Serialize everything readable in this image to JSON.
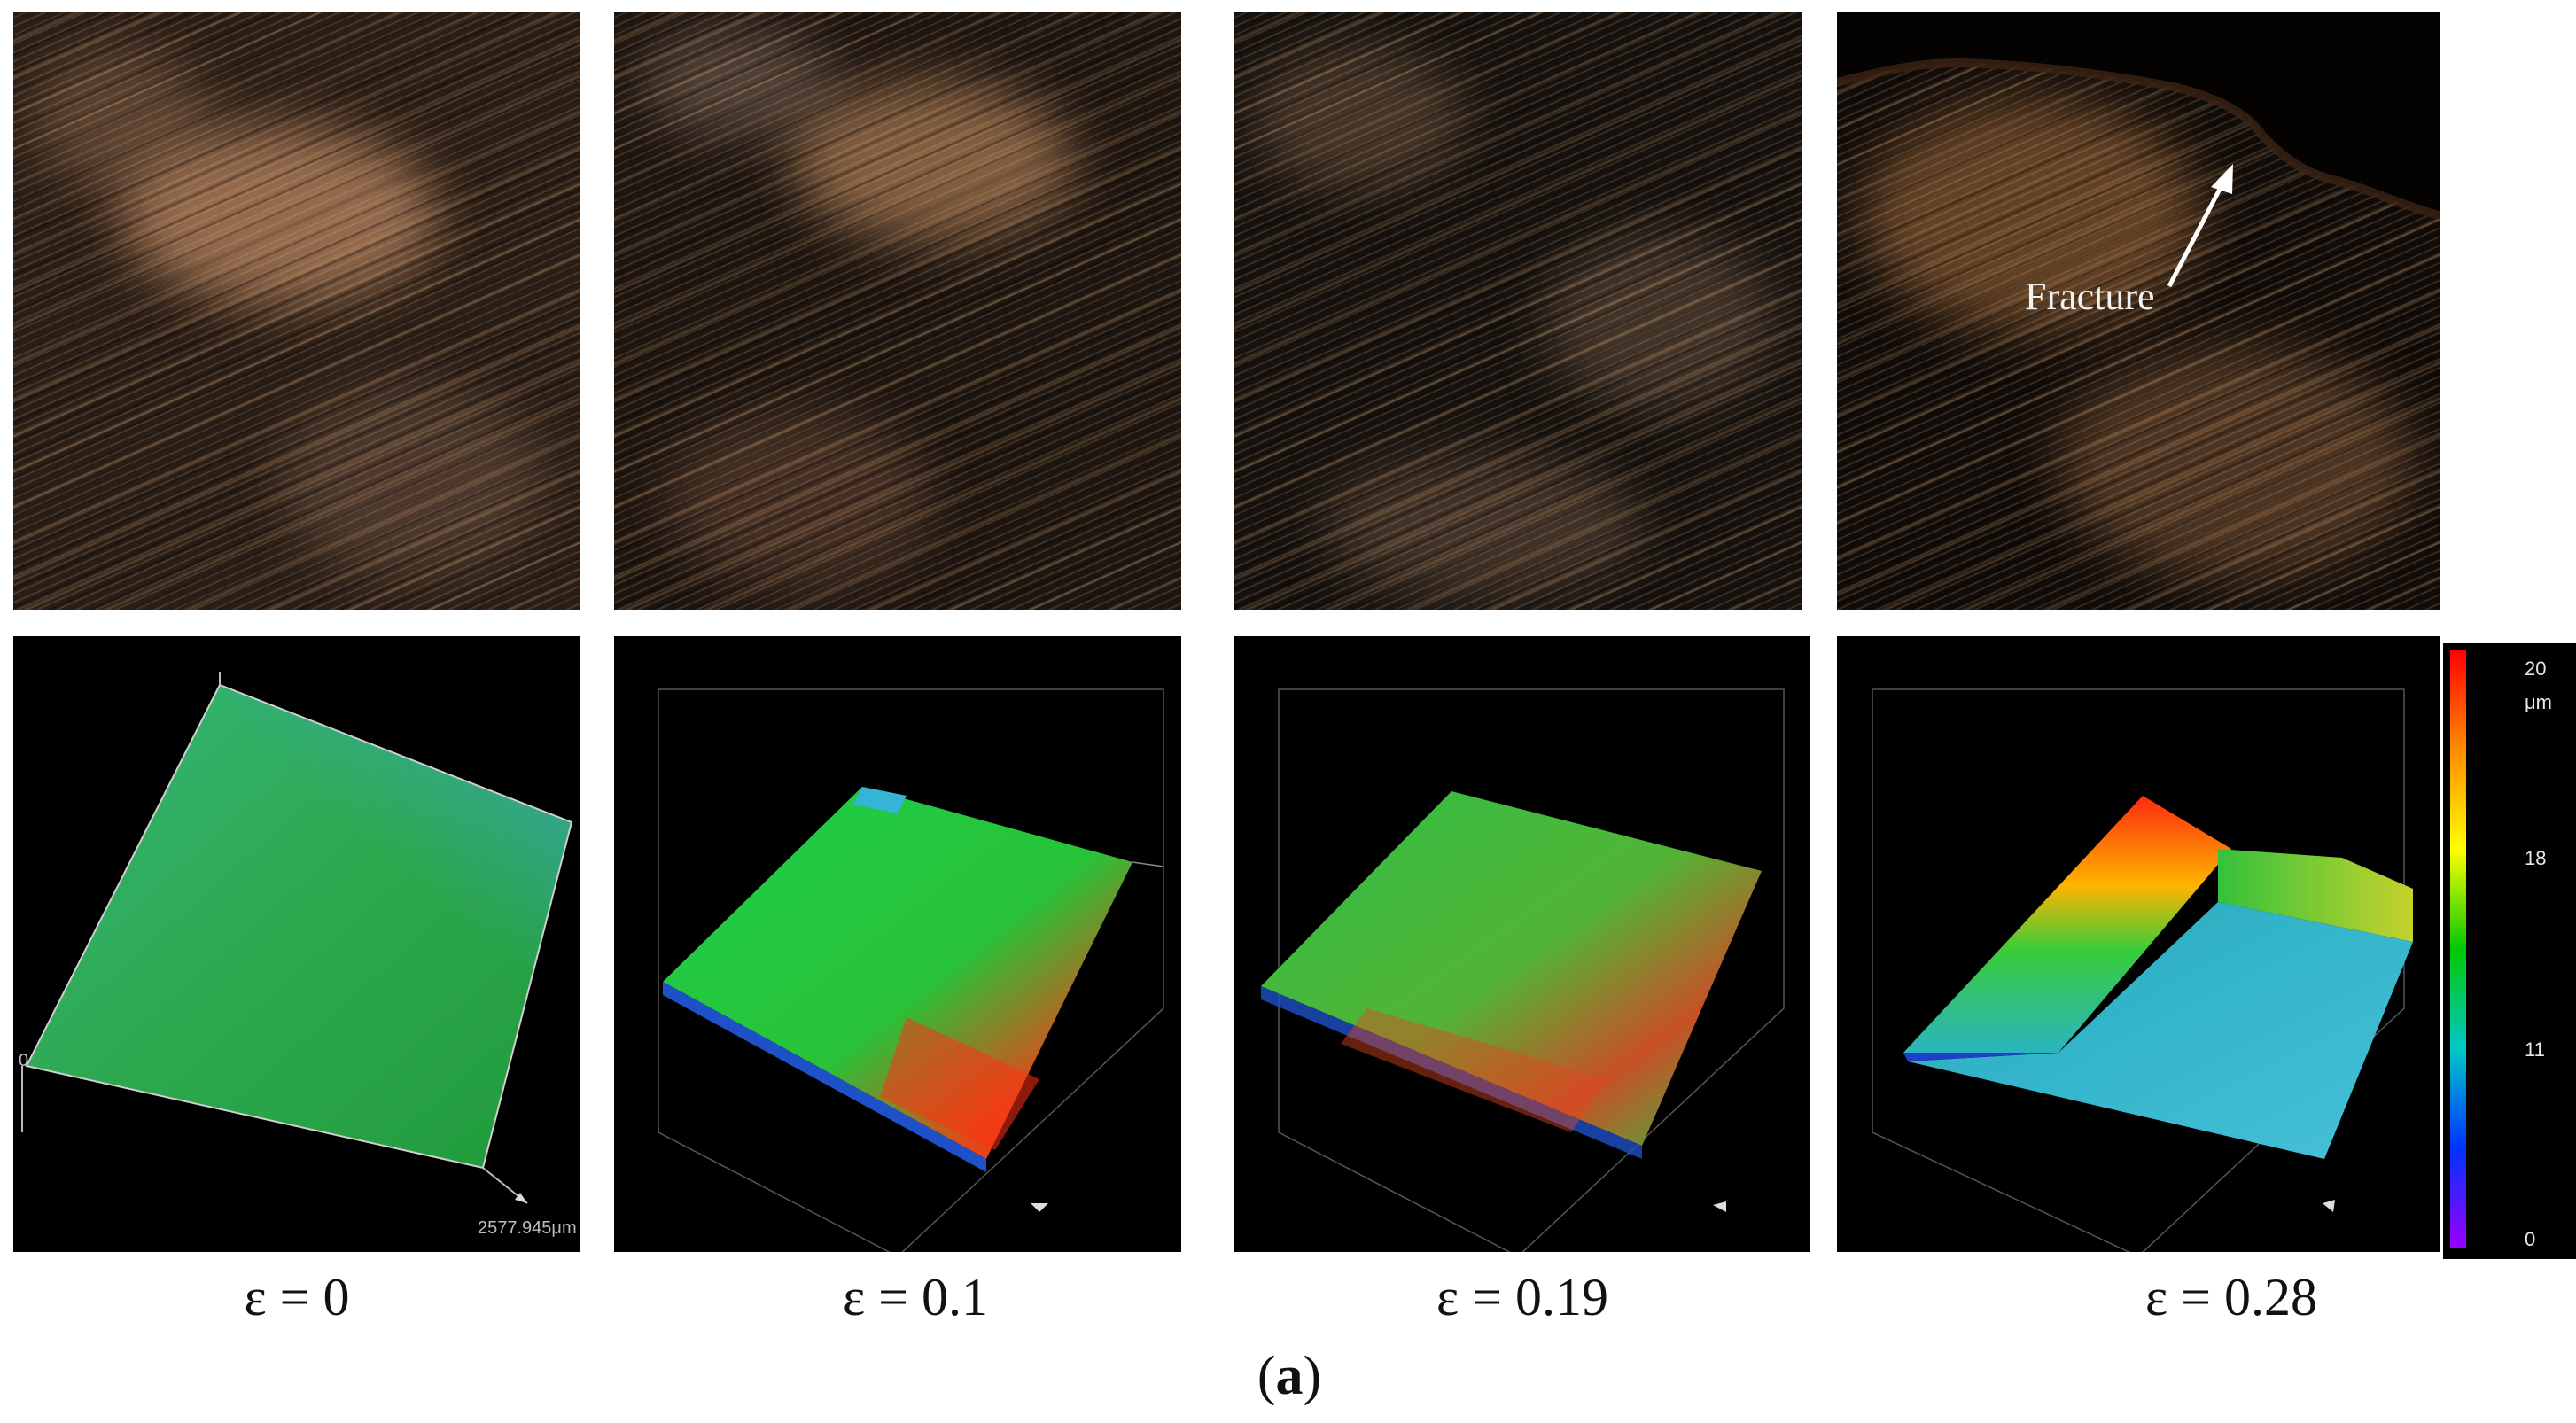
{
  "panels": [
    {
      "strain_label": "ε = 0"
    },
    {
      "strain_label": "ε = 0.1"
    },
    {
      "strain_label": "ε = 0.19"
    },
    {
      "strain_label": "ε = 0.28"
    }
  ],
  "annotation": {
    "fracture": "Fracture"
  },
  "topo_axis": {
    "scale_text": "2577.945μm",
    "origin": "0"
  },
  "colorbar": {
    "unit": "μm",
    "ticks": [
      "20",
      "18",
      "11",
      "0"
    ],
    "colors": [
      "#ff0000",
      "#ff8c00",
      "#ffff00",
      "#00c800",
      "#00c8c8",
      "#0032ff",
      "#9b00ff"
    ]
  },
  "figure_label": {
    "open": "(",
    "letter": "a",
    "close": ")"
  }
}
